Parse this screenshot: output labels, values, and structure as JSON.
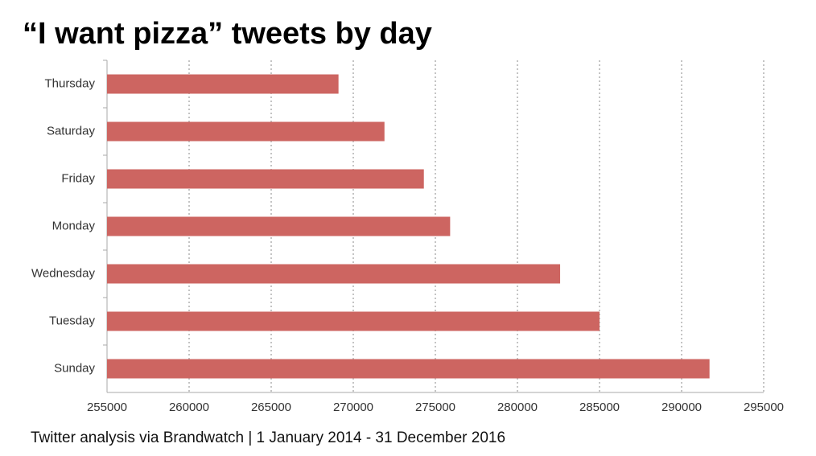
{
  "chart_data": {
    "type": "bar",
    "orientation": "horizontal",
    "title": "“I want pizza” tweets by day",
    "subtitle": "Twitter analysis via Brandwatch | 1 January 2014 - 31 December 2016",
    "categories": [
      "Thursday",
      "Saturday",
      "Friday",
      "Monday",
      "Wednesday",
      "Tuesday",
      "Sunday"
    ],
    "values": [
      269100,
      271900,
      274300,
      275900,
      282600,
      285000,
      291700
    ],
    "color": "#cd6561",
    "xlim": [
      255000,
      295000
    ],
    "xticks": [
      255000,
      260000,
      265000,
      270000,
      275000,
      280000,
      285000,
      290000,
      295000
    ],
    "grid": true
  }
}
